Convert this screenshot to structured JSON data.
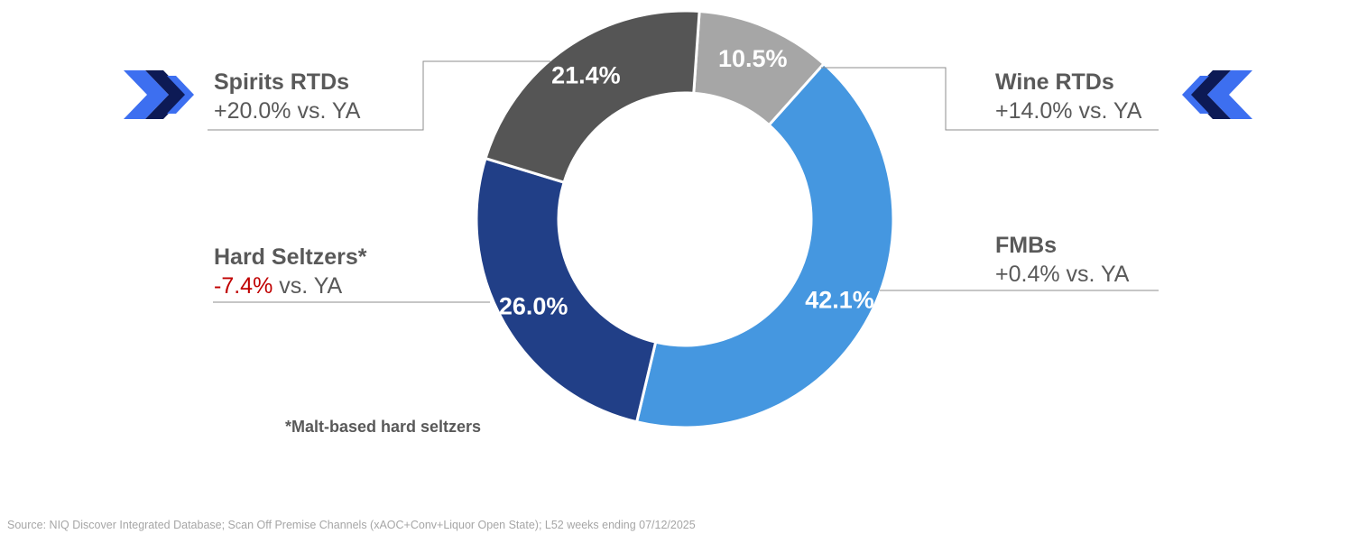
{
  "chart_data": {
    "type": "pie",
    "variant": "donut",
    "slices": [
      {
        "name": "Wine RTDs",
        "value": 10.5,
        "label": "10.5%",
        "color": "#a6a6a6",
        "growth_prefix": "+14.0%",
        "growth_suffix": " vs. YA",
        "negative": false
      },
      {
        "name": "FMBs",
        "value": 42.1,
        "label": "42.1%",
        "color": "#4597e0",
        "growth_prefix": "+0.4%",
        "growth_suffix": " vs. YA",
        "negative": false
      },
      {
        "name": "Hard Seltzers*",
        "value": 26.0,
        "label": "26.0%",
        "color": "#213f87",
        "growth_prefix": "-7.4%",
        "growth_suffix": " vs. YA",
        "negative": true
      },
      {
        "name": "Spirits RTDs",
        "value": 21.4,
        "label": "21.4%",
        "color": "#555555",
        "growth_prefix": "+20.0%",
        "growth_suffix": " vs. YA",
        "negative": false
      }
    ]
  },
  "footnote": "*Malt-based hard seltzers",
  "source": "Source: NIQ Discover Integrated Database; Scan Off Premise Channels (xAOC+Conv+Liquor Open State); L52 weeks ending 07/12/2025",
  "icons": {
    "left": "fast-forward-arrows-icon",
    "right": "rewind-arrows-icon",
    "colors": {
      "light": "#3d6ff0",
      "dark": "#0d1a55"
    }
  }
}
